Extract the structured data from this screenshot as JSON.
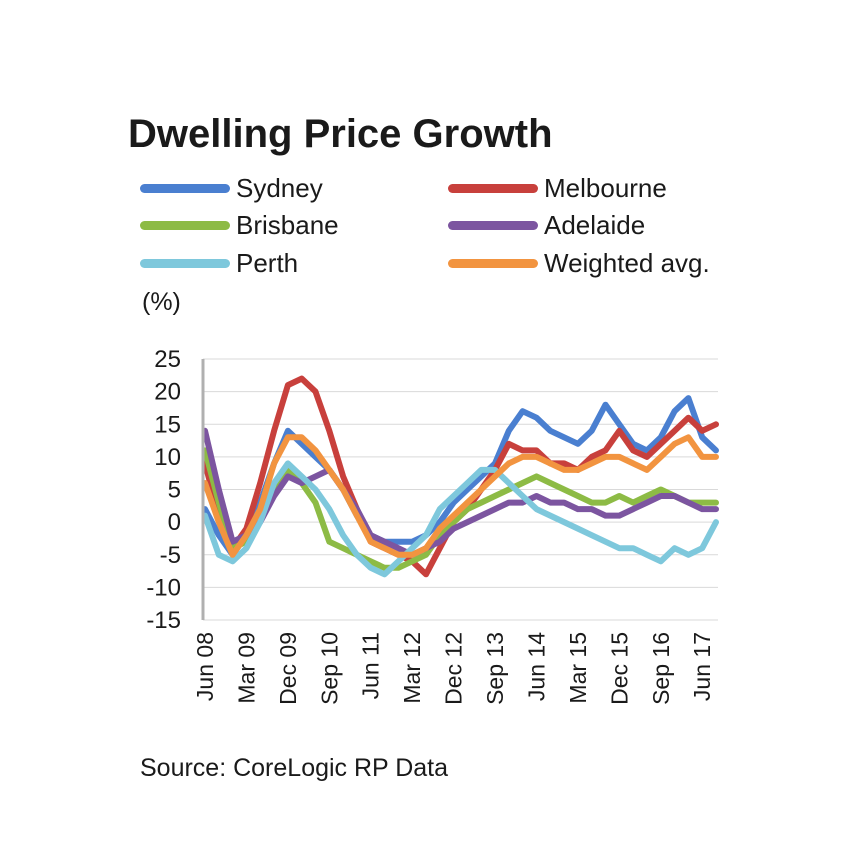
{
  "title": "Dwelling Price Growth",
  "unit_label": "(%)",
  "source": "Source: CoreLogic RP Data",
  "chart_data": {
    "type": "line",
    "title": "Dwelling Price Growth",
    "ylabel": "(%)",
    "ylim": [
      -15,
      25
    ],
    "yticks": [
      25,
      20,
      15,
      10,
      5,
      0,
      -5,
      -10,
      -15
    ],
    "xtick_labels": [
      "Jun 08",
      "Mar 09",
      "Dec 09",
      "Sep 10",
      "Jun 11",
      "Mar 12",
      "Dec 12",
      "Sep 13",
      "Jun 14",
      "Mar 15",
      "Dec 15",
      "Sep 16",
      "Jun 17"
    ],
    "grid": true,
    "legend_position": "top",
    "x": [
      "Jun 08",
      "Sep 08",
      "Dec 08",
      "Mar 09",
      "Jun 09",
      "Sep 09",
      "Dec 09",
      "Mar 10",
      "Jun 10",
      "Sep 10",
      "Dec 10",
      "Mar 11",
      "Jun 11",
      "Sep 11",
      "Dec 11",
      "Mar 12",
      "Jun 12",
      "Sep 12",
      "Dec 12",
      "Mar 13",
      "Jun 13",
      "Sep 13",
      "Dec 13",
      "Mar 14",
      "Jun 14",
      "Sep 14",
      "Dec 14",
      "Mar 15",
      "Jun 15",
      "Sep 15",
      "Dec 15",
      "Mar 16",
      "Jun 16",
      "Sep 16",
      "Dec 16",
      "Mar 17",
      "Jun 17",
      "Sep 17"
    ],
    "series": [
      {
        "name": "Sydney",
        "color": "#4a7fd0",
        "values": [
          2,
          -2,
          -5,
          -2,
          3,
          9,
          14,
          12,
          10,
          8,
          5,
          1,
          -2,
          -3,
          -3,
          -3,
          -2,
          0,
          3,
          5,
          7,
          9,
          14,
          17,
          16,
          14,
          13,
          12,
          14,
          18,
          15,
          12,
          11,
          13,
          17,
          19,
          13,
          11
        ]
      },
      {
        "name": "Melbourne",
        "color": "#c8403c",
        "values": [
          9,
          1,
          -4,
          -1,
          6,
          14,
          21,
          22,
          20,
          14,
          7,
          2,
          -3,
          -4,
          -5,
          -6,
          -8,
          -4,
          0,
          2,
          5,
          8,
          12,
          11,
          11,
          9,
          9,
          8,
          10,
          11,
          14,
          11,
          10,
          12,
          14,
          16,
          14,
          15
        ]
      },
      {
        "name": "Brisbane",
        "color": "#8dbb45",
        "values": [
          11,
          3,
          -4,
          -3,
          1,
          5,
          8,
          6,
          3,
          -3,
          -4,
          -5,
          -6,
          -7,
          -7,
          -6,
          -5,
          -2,
          0,
          2,
          3,
          4,
          5,
          6,
          7,
          6,
          5,
          4,
          3,
          3,
          4,
          3,
          4,
          5,
          4,
          3,
          3,
          3
        ]
      },
      {
        "name": "Adelaide",
        "color": "#7c55a0",
        "values": [
          14,
          5,
          -3,
          -2,
          0,
          4,
          7,
          6,
          7,
          8,
          5,
          2,
          -2,
          -3,
          -4,
          -5,
          -4,
          -3,
          -1,
          0,
          1,
          2,
          3,
          3,
          4,
          3,
          3,
          2,
          2,
          1,
          1,
          2,
          3,
          4,
          4,
          3,
          2,
          2
        ]
      },
      {
        "name": "Perth",
        "color": "#7ec8dc",
        "values": [
          1,
          -5,
          -6,
          -4,
          0,
          6,
          9,
          7,
          5,
          2,
          -2,
          -5,
          -7,
          -8,
          -6,
          -4,
          -2,
          2,
          4,
          6,
          8,
          8,
          6,
          4,
          2,
          1,
          0,
          -1,
          -2,
          -3,
          -4,
          -4,
          -5,
          -6,
          -4,
          -5,
          -4,
          0
        ]
      },
      {
        "name": "Weighted avg.",
        "color": "#f29440",
        "values": [
          6,
          0,
          -5,
          -2,
          2,
          9,
          13,
          13,
          11,
          8,
          5,
          1,
          -3,
          -4,
          -5,
          -5,
          -4,
          -1,
          1,
          3,
          5,
          7,
          9,
          10,
          10,
          9,
          8,
          8,
          9,
          10,
          10,
          9,
          8,
          10,
          12,
          13,
          10,
          10
        ]
      }
    ]
  }
}
